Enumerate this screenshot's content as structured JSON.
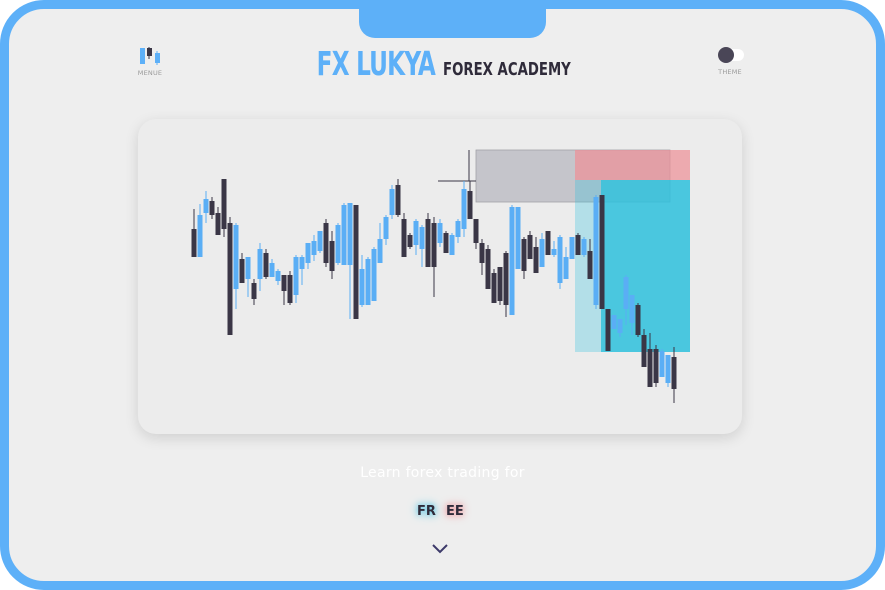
{
  "header": {
    "menu_label": "MENUE",
    "brand_main": "FX LUKYA",
    "brand_sub": "FOREX ACADEMY",
    "theme_label": "THEME"
  },
  "hero": {
    "tagline": "Learn forex trading for",
    "free_part1": "FR",
    "free_part2": "EE"
  },
  "colors": {
    "accent": "#5db0f8",
    "dark": "#2f2b3a",
    "candle_bull": "#5aaef5",
    "candle_bear": "#3a3646",
    "zone_take_profit": "#2ec1dd",
    "zone_stop": "#ee8f95",
    "zone_range": "#b9b9c0"
  },
  "icons": {
    "menu": "candlestick-menu-icon",
    "theme": "toggle-icon",
    "scroll": "chevron-down-icon"
  }
}
